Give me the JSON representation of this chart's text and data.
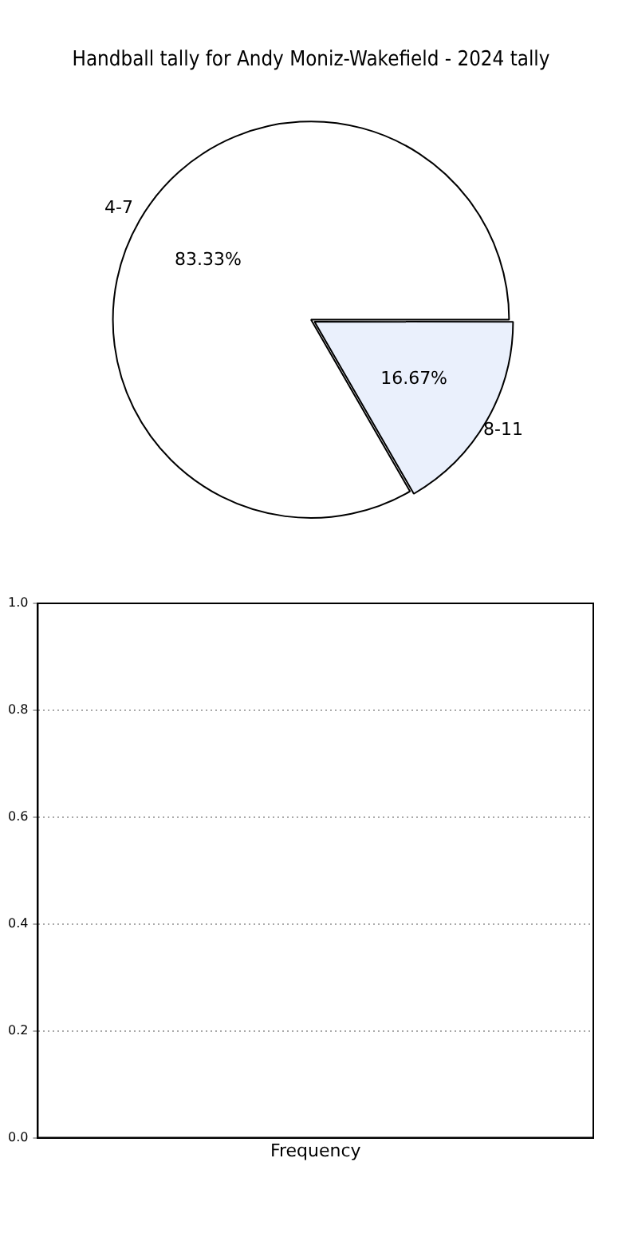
{
  "chart_data": [
    {
      "type": "pie",
      "title": "Handball tally for Andy Moniz-Wakefield - 2024 tally",
      "categories": [
        "4-7",
        "8-11"
      ],
      "values": [
        83.33,
        16.67
      ],
      "value_labels": [
        "83.33%",
        "16.67%"
      ],
      "colors": [
        "#ffffff",
        "#eaf0fc"
      ],
      "legend": false
    },
    {
      "type": "bar",
      "xlabel": "Frequency",
      "categories": [
        null
      ],
      "values": [
        null
      ],
      "ylim": [
        0,
        1
      ],
      "yticks": [
        {
          "value": 0,
          "label": "0.0"
        },
        0.2,
        0.4,
        0.6,
        0.8,
        {
          "value": 1,
          "label": "1.0"
        }
      ],
      "grid": "y",
      "legend": false
    }
  ]
}
